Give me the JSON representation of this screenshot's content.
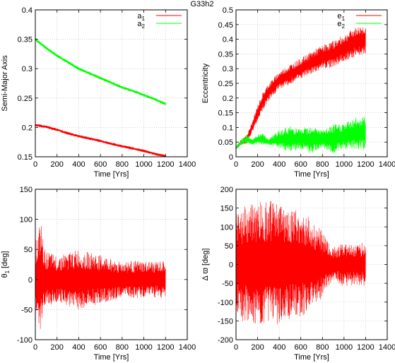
{
  "page_title": "G33h2",
  "chart_data": [
    {
      "id": "semi-major",
      "type": "line",
      "title": "",
      "xlabel": "Time [Yrs]",
      "ylabel": "Semi-Major Axis",
      "xlim": [
        0,
        1400
      ],
      "ylim": [
        0.15,
        0.4
      ],
      "xticks": [
        0,
        200,
        400,
        600,
        800,
        1000,
        1200,
        1400
      ],
      "yticks": [
        0.15,
        0.2,
        0.25,
        0.3,
        0.35,
        0.4
      ],
      "ytick_labels": [
        "0.15",
        "0.2",
        "0.25",
        "0.3",
        "0.35",
        "0.4"
      ],
      "grid": true,
      "legend": "top-right",
      "series": [
        {
          "name": "a1",
          "sub": "1",
          "base": "a",
          "color": "#ff0000",
          "x": [
            0,
            100,
            200,
            300,
            400,
            500,
            600,
            700,
            800,
            900,
            1000,
            1100,
            1200
          ],
          "y": [
            0.204,
            0.201,
            0.196,
            0.19,
            0.185,
            0.181,
            0.177,
            0.172,
            0.168,
            0.164,
            0.16,
            0.155,
            0.151
          ],
          "osc": 0.002
        },
        {
          "name": "a2",
          "sub": "2",
          "base": "a",
          "color": "#00ff00",
          "x": [
            0,
            100,
            200,
            300,
            400,
            500,
            600,
            700,
            800,
            900,
            1000,
            1100,
            1200
          ],
          "y": [
            0.35,
            0.335,
            0.322,
            0.311,
            0.3,
            0.292,
            0.284,
            0.276,
            0.268,
            0.262,
            0.255,
            0.248,
            0.24
          ],
          "osc": 0.002
        }
      ]
    },
    {
      "id": "eccentricity",
      "type": "line",
      "title": "",
      "xlabel": "Time [Yrs]",
      "ylabel": "Eccentricity",
      "xlim": [
        0,
        1400
      ],
      "ylim": [
        0,
        0.5
      ],
      "xticks": [
        0,
        200,
        400,
        600,
        800,
        1000,
        1200,
        1400
      ],
      "yticks": [
        0,
        0.05,
        0.1,
        0.15,
        0.2,
        0.25,
        0.3,
        0.35,
        0.4,
        0.45,
        0.5
      ],
      "ytick_labels": [
        "0",
        "0.05",
        "0.1",
        "0.15",
        "0.2",
        "0.25",
        "0.3",
        "0.35",
        "0.4",
        "0.45",
        "0.5"
      ],
      "grid": true,
      "legend": "top-right",
      "series": [
        {
          "name": "e1",
          "sub": "1",
          "base": "e",
          "color": "#ff0000",
          "x": [
            0,
            50,
            100,
            150,
            200,
            250,
            300,
            400,
            500,
            600,
            700,
            800,
            900,
            1000,
            1100,
            1200
          ],
          "y": [
            0.03,
            0.05,
            0.06,
            0.1,
            0.15,
            0.19,
            0.22,
            0.26,
            0.28,
            0.3,
            0.32,
            0.34,
            0.35,
            0.37,
            0.39,
            0.4
          ],
          "osc": [
            0.005,
            0.01,
            0.015,
            0.02,
            0.025,
            0.03,
            0.03,
            0.03,
            0.035,
            0.035,
            0.04,
            0.04,
            0.045,
            0.045,
            0.05,
            0.05
          ]
        },
        {
          "name": "e2",
          "sub": "2",
          "base": "e",
          "color": "#00ff00",
          "x": [
            0,
            50,
            100,
            150,
            200,
            250,
            300,
            400,
            500,
            600,
            700,
            800,
            900,
            1000,
            1100,
            1200
          ],
          "y": [
            0.03,
            0.05,
            0.06,
            0.05,
            0.06,
            0.06,
            0.05,
            0.06,
            0.06,
            0.06,
            0.06,
            0.06,
            0.06,
            0.07,
            0.08,
            0.08
          ],
          "osc": [
            0.005,
            0.01,
            0.015,
            0.01,
            0.015,
            0.02,
            0.01,
            0.03,
            0.045,
            0.035,
            0.05,
            0.03,
            0.05,
            0.045,
            0.055,
            0.06
          ]
        }
      ]
    },
    {
      "id": "theta1",
      "type": "line",
      "title": "",
      "xlabel": "Time [Yrs]",
      "ylabel": "θ",
      "ylabel_sub": "1",
      "ylabel_unit": "[deg]",
      "xlim": [
        0,
        1400
      ],
      "ylim": [
        -100,
        150
      ],
      "xticks": [
        0,
        200,
        400,
        600,
        800,
        1000,
        1200,
        1400
      ],
      "yticks": [
        -100,
        -50,
        0,
        50,
        100,
        150
      ],
      "ytick_labels": [
        "-100",
        "-50",
        "0",
        "50",
        "100",
        "150"
      ],
      "grid": true,
      "series": [
        {
          "name": "θ1",
          "color": "#ff0000",
          "x": [
            0,
            20,
            50,
            80,
            120,
            200,
            300,
            400,
            500,
            600,
            700,
            800,
            900,
            1000,
            1100,
            1200
          ],
          "y": [
            0,
            0,
            0,
            0,
            0,
            0,
            0,
            0,
            0,
            0,
            0,
            0,
            0,
            0,
            0,
            0
          ],
          "osc": [
            70,
            70,
            100,
            50,
            45,
            40,
            45,
            50,
            45,
            40,
            35,
            30,
            32,
            30,
            30,
            30
          ]
        }
      ]
    },
    {
      "id": "delta-varpi",
      "type": "line",
      "title": "",
      "xlabel": "Time [Yrs]",
      "ylabel": "Δ ϖ",
      "ylabel_unit": "[deg]",
      "xlim": [
        0,
        1400
      ],
      "ylim": [
        -200,
        200
      ],
      "xticks": [
        0,
        200,
        400,
        600,
        800,
        1000,
        1200,
        1400
      ],
      "yticks": [
        -200,
        -150,
        -100,
        -50,
        0,
        50,
        100,
        150,
        200
      ],
      "ytick_labels": [
        "-200",
        "-150",
        "-100",
        "-50",
        "0",
        "50",
        "100",
        "150",
        "200"
      ],
      "grid": true,
      "series": [
        {
          "name": "Δϖ",
          "color": "#ff0000",
          "x": [
            0,
            50,
            100,
            150,
            200,
            300,
            400,
            500,
            600,
            700,
            800,
            850,
            900,
            1000,
            1100,
            1200
          ],
          "y": [
            0,
            0,
            0,
            0,
            0,
            0,
            0,
            0,
            0,
            0,
            0,
            0,
            0,
            0,
            0,
            0
          ],
          "osc": [
            130,
            150,
            160,
            160,
            170,
            170,
            165,
            150,
            140,
            120,
            90,
            60,
            45,
            60,
            55,
            60
          ]
        }
      ]
    }
  ]
}
